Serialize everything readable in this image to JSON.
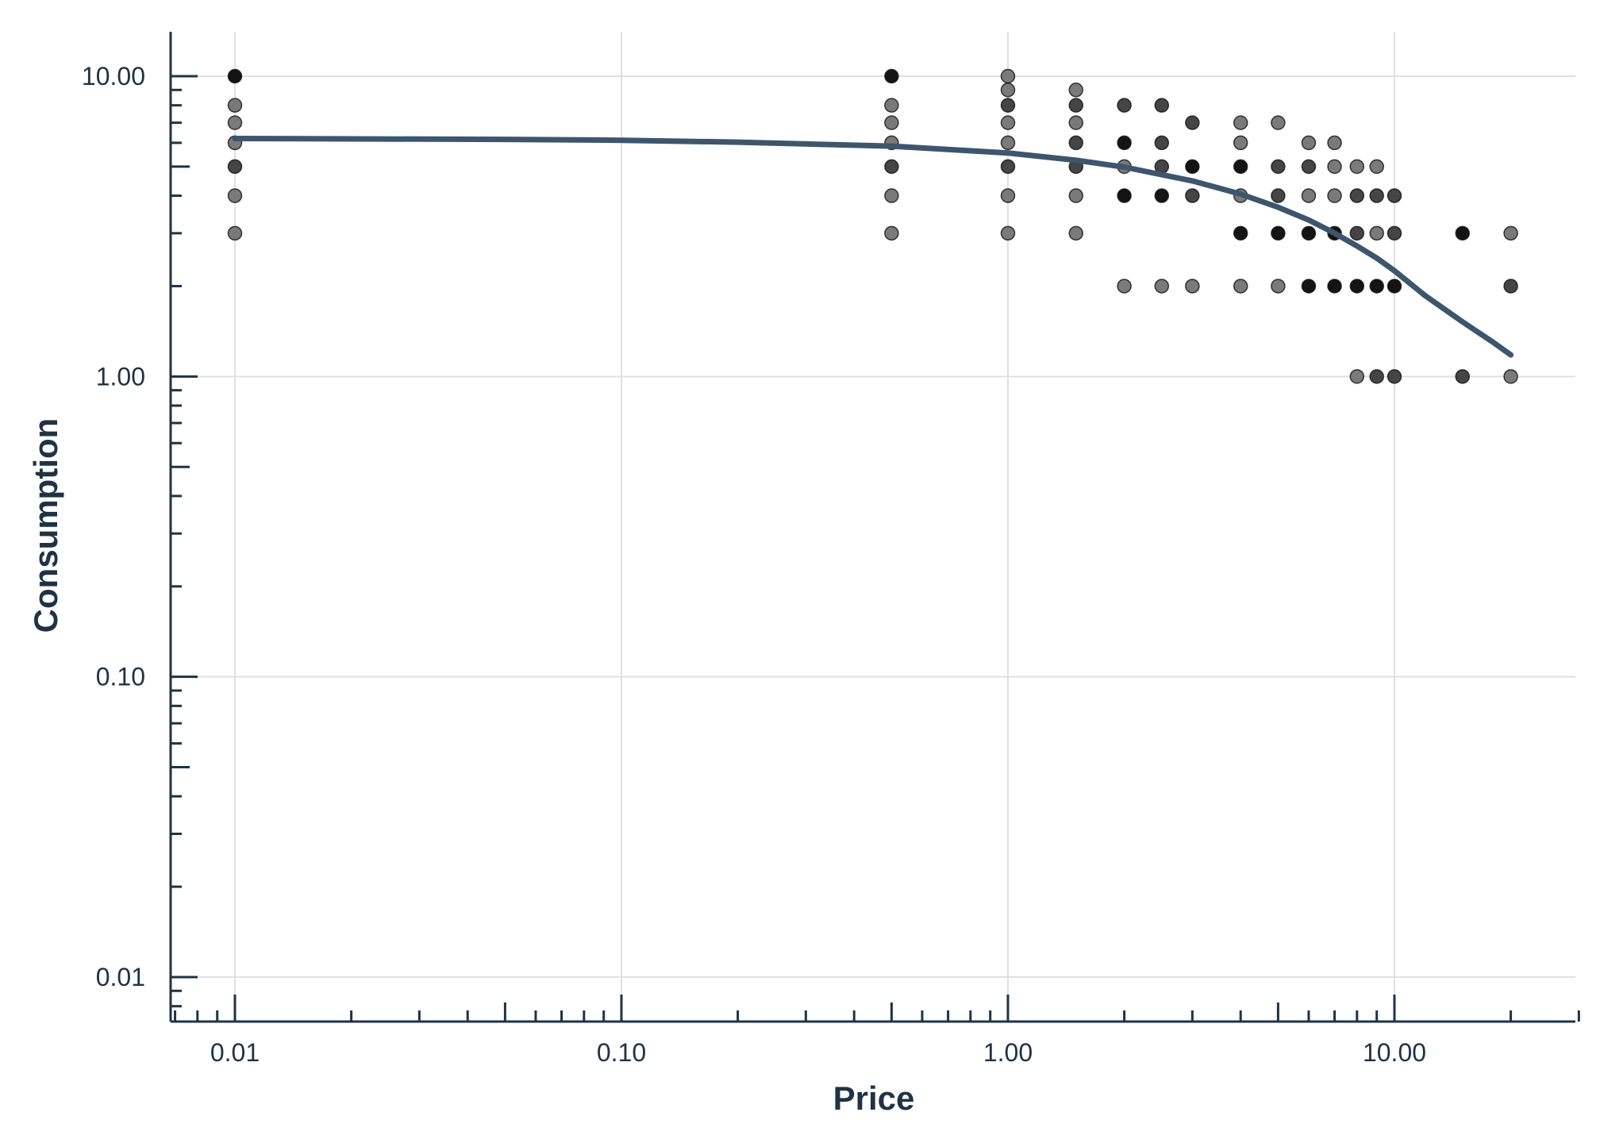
{
  "chart_data": {
    "type": "scatter",
    "xlabel": "Price",
    "ylabel": "Consumption",
    "x_scale": "log",
    "y_scale": "log",
    "xlim": [
      0.0068,
      30
    ],
    "ylim": [
      0.0071,
      14
    ],
    "grid": true,
    "x_ticks": [
      {
        "value": 0.01,
        "label": "0.01"
      },
      {
        "value": 0.1,
        "label": "0.10"
      },
      {
        "value": 1,
        "label": "1.00"
      },
      {
        "value": 10,
        "label": "10.00"
      }
    ],
    "y_ticks": [
      {
        "value": 0.01,
        "label": "0.01"
      },
      {
        "value": 0.1,
        "label": "0.10"
      },
      {
        "value": 1,
        "label": "1.00"
      },
      {
        "value": 10,
        "label": "10.00"
      }
    ],
    "points": [
      {
        "x": 0.01,
        "y": 10,
        "count": 3
      },
      {
        "x": 0.01,
        "y": 8,
        "count": 1
      },
      {
        "x": 0.01,
        "y": 7,
        "count": 1
      },
      {
        "x": 0.01,
        "y": 6,
        "count": 1
      },
      {
        "x": 0.01,
        "y": 5,
        "count": 2
      },
      {
        "x": 0.01,
        "y": 4,
        "count": 1
      },
      {
        "x": 0.01,
        "y": 3,
        "count": 1
      },
      {
        "x": 0.5,
        "y": 10,
        "count": 3
      },
      {
        "x": 0.5,
        "y": 8,
        "count": 1
      },
      {
        "x": 0.5,
        "y": 7,
        "count": 1
      },
      {
        "x": 0.5,
        "y": 6,
        "count": 1
      },
      {
        "x": 0.5,
        "y": 5,
        "count": 2
      },
      {
        "x": 0.5,
        "y": 4,
        "count": 1
      },
      {
        "x": 0.5,
        "y": 3,
        "count": 1
      },
      {
        "x": 1,
        "y": 10,
        "count": 1
      },
      {
        "x": 1,
        "y": 9,
        "count": 1
      },
      {
        "x": 1,
        "y": 8,
        "count": 2
      },
      {
        "x": 1,
        "y": 7,
        "count": 1
      },
      {
        "x": 1,
        "y": 6,
        "count": 1
      },
      {
        "x": 1,
        "y": 5,
        "count": 2
      },
      {
        "x": 1,
        "y": 4,
        "count": 1
      },
      {
        "x": 1,
        "y": 3,
        "count": 1
      },
      {
        "x": 1.5,
        "y": 9,
        "count": 1
      },
      {
        "x": 1.5,
        "y": 8,
        "count": 2
      },
      {
        "x": 1.5,
        "y": 7,
        "count": 1
      },
      {
        "x": 1.5,
        "y": 6,
        "count": 2
      },
      {
        "x": 1.5,
        "y": 5,
        "count": 2
      },
      {
        "x": 1.5,
        "y": 4,
        "count": 1
      },
      {
        "x": 1.5,
        "y": 3,
        "count": 1
      },
      {
        "x": 2,
        "y": 8,
        "count": 2
      },
      {
        "x": 2,
        "y": 6,
        "count": 3
      },
      {
        "x": 2,
        "y": 5,
        "count": 1
      },
      {
        "x": 2,
        "y": 4,
        "count": 3
      },
      {
        "x": 2,
        "y": 2,
        "count": 1
      },
      {
        "x": 2.5,
        "y": 8,
        "count": 2
      },
      {
        "x": 2.5,
        "y": 6,
        "count": 2
      },
      {
        "x": 2.5,
        "y": 5,
        "count": 2
      },
      {
        "x": 2.5,
        "y": 4,
        "count": 3
      },
      {
        "x": 2.5,
        "y": 2,
        "count": 1
      },
      {
        "x": 3,
        "y": 7,
        "count": 2
      },
      {
        "x": 3,
        "y": 5,
        "count": 3
      },
      {
        "x": 3,
        "y": 4,
        "count": 2
      },
      {
        "x": 3,
        "y": 2,
        "count": 1
      },
      {
        "x": 4,
        "y": 7,
        "count": 1
      },
      {
        "x": 4,
        "y": 6,
        "count": 1
      },
      {
        "x": 4,
        "y": 5,
        "count": 3
      },
      {
        "x": 4,
        "y": 4,
        "count": 1
      },
      {
        "x": 4,
        "y": 3,
        "count": 3
      },
      {
        "x": 4,
        "y": 2,
        "count": 1
      },
      {
        "x": 5,
        "y": 7,
        "count": 1
      },
      {
        "x": 5,
        "y": 5,
        "count": 2
      },
      {
        "x": 5,
        "y": 4,
        "count": 2
      },
      {
        "x": 5,
        "y": 3,
        "count": 3
      },
      {
        "x": 5,
        "y": 2,
        "count": 1
      },
      {
        "x": 6,
        "y": 6,
        "count": 1
      },
      {
        "x": 6,
        "y": 5,
        "count": 2
      },
      {
        "x": 6,
        "y": 4,
        "count": 1
      },
      {
        "x": 6,
        "y": 3,
        "count": 3
      },
      {
        "x": 6,
        "y": 2,
        "count": 3
      },
      {
        "x": 7,
        "y": 6,
        "count": 1
      },
      {
        "x": 7,
        "y": 5,
        "count": 1
      },
      {
        "x": 7,
        "y": 4,
        "count": 1
      },
      {
        "x": 7,
        "y": 3,
        "count": 3
      },
      {
        "x": 7,
        "y": 2,
        "count": 3
      },
      {
        "x": 8,
        "y": 5,
        "count": 1
      },
      {
        "x": 8,
        "y": 4,
        "count": 2
      },
      {
        "x": 8,
        "y": 3,
        "count": 2
      },
      {
        "x": 8,
        "y": 2,
        "count": 3
      },
      {
        "x": 8,
        "y": 1,
        "count": 1
      },
      {
        "x": 9,
        "y": 5,
        "count": 1
      },
      {
        "x": 9,
        "y": 4,
        "count": 2
      },
      {
        "x": 9,
        "y": 3,
        "count": 1
      },
      {
        "x": 9,
        "y": 2,
        "count": 3
      },
      {
        "x": 9,
        "y": 1,
        "count": 2
      },
      {
        "x": 10,
        "y": 4,
        "count": 2
      },
      {
        "x": 10,
        "y": 3,
        "count": 2
      },
      {
        "x": 10,
        "y": 2,
        "count": 3
      },
      {
        "x": 10,
        "y": 1,
        "count": 2
      },
      {
        "x": 15,
        "y": 3,
        "count": 3
      },
      {
        "x": 15,
        "y": 1,
        "count": 2
      },
      {
        "x": 20,
        "y": 3,
        "count": 1
      },
      {
        "x": 20,
        "y": 2,
        "count": 2
      },
      {
        "x": 20,
        "y": 1,
        "count": 1
      }
    ],
    "curve": {
      "x": [
        0.01,
        0.05,
        0.1,
        0.2,
        0.5,
        1,
        1.5,
        2,
        3,
        4,
        5,
        6,
        7,
        8,
        9,
        10,
        12,
        15,
        18,
        20
      ],
      "y": [
        6.2,
        6.16,
        6.12,
        6.03,
        5.85,
        5.55,
        5.25,
        4.98,
        4.48,
        4.05,
        3.66,
        3.32,
        3.0,
        2.72,
        2.48,
        2.25,
        1.86,
        1.52,
        1.3,
        1.18
      ],
      "color": "#3d566e"
    },
    "colors": {
      "point_light": "#7a7a7a",
      "point_mid": "#454545",
      "point_dark": "#141414",
      "axis": "#1f3345",
      "grid": "#e0e0e0",
      "text": "#1f3345"
    }
  }
}
